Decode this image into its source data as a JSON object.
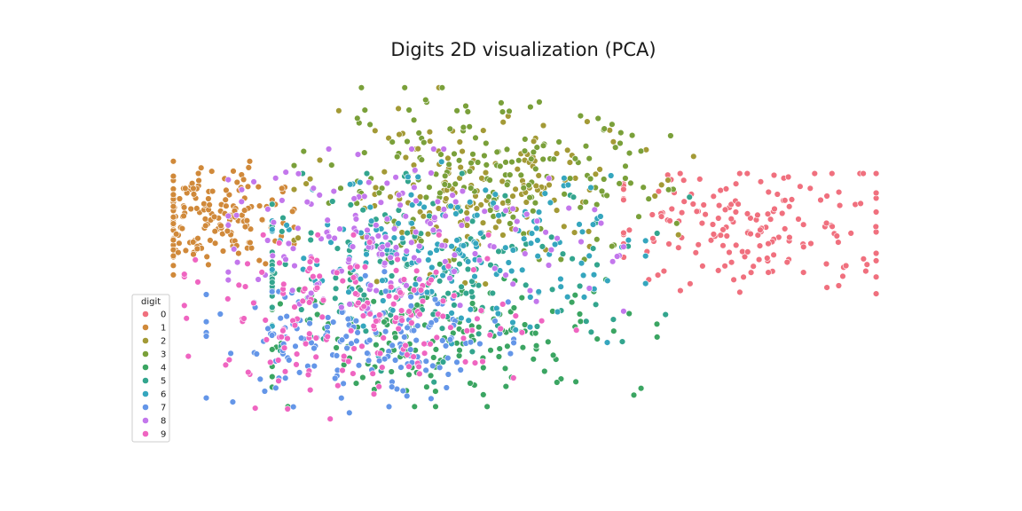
{
  "chart_data": {
    "type": "scatter",
    "title": "Digits 2D visualization (PCA)",
    "xlabel": "",
    "ylabel": "",
    "xlim": [
      -32,
      34
    ],
    "ylim": [
      -30,
      28
    ],
    "grid": false,
    "legend": {
      "title": "digit",
      "placement": "lower-left",
      "labels": [
        "0",
        "1",
        "2",
        "3",
        "4",
        "5",
        "6",
        "7",
        "8",
        "9"
      ]
    },
    "palette": [
      "#f0707e",
      "#d0893a",
      "#a39a36",
      "#7aa03a",
      "#3ba562",
      "#33a58e",
      "#35a6be",
      "#6496e8",
      "#c377ec",
      "#ef65c1"
    ],
    "series": [
      {
        "name": "0",
        "centroid": [
          22,
          3
        ],
        "spread": [
          7,
          5
        ],
        "count": 178,
        "range": [
          [
            10,
            33
          ],
          [
            -12,
            12
          ]
        ]
      },
      {
        "name": "1",
        "centroid": [
          -28,
          5
        ],
        "spread": [
          3.5,
          4
        ],
        "count": 182,
        "range": [
          [
            -31,
            -20
          ],
          [
            -8,
            14
          ]
        ]
      },
      {
        "name": "2",
        "centroid": [
          -4,
          9
        ],
        "spread": [
          7,
          6
        ],
        "count": 177,
        "range": [
          [
            -20,
            18
          ],
          [
            -6,
            26
          ]
        ]
      },
      {
        "name": "3",
        "centroid": [
          -2,
          11
        ],
        "spread": [
          8,
          6
        ],
        "count": 183,
        "range": [
          [
            -20,
            18
          ],
          [
            -2,
            26
          ]
        ]
      },
      {
        "name": "4",
        "centroid": [
          -6,
          -14
        ],
        "spread": [
          9,
          5
        ],
        "count": 181,
        "range": [
          [
            -22,
            14
          ],
          [
            -26,
            0
          ]
        ]
      },
      {
        "name": "5",
        "centroid": [
          -8,
          -4
        ],
        "spread": [
          10,
          7
        ],
        "count": 182,
        "range": [
          [
            -22,
            16
          ],
          [
            -22,
            12
          ]
        ]
      },
      {
        "name": "6",
        "centroid": [
          -6,
          -1
        ],
        "spread": [
          8,
          6
        ],
        "count": 181,
        "range": [
          [
            -22,
            12
          ],
          [
            -18,
            15
          ]
        ]
      },
      {
        "name": "7",
        "centroid": [
          -14,
          -16
        ],
        "spread": [
          7,
          5
        ],
        "count": 179,
        "range": [
          [
            -28,
            0
          ],
          [
            -27,
            -4
          ]
        ]
      },
      {
        "name": "8",
        "centroid": [
          -10,
          2
        ],
        "spread": [
          9,
          6
        ],
        "count": 174,
        "range": [
          [
            -26,
            10
          ],
          [
            -20,
            16
          ]
        ]
      },
      {
        "name": "9",
        "centroid": [
          -14,
          -12
        ],
        "spread": [
          8,
          6
        ],
        "count": 180,
        "range": [
          [
            -30,
            6
          ],
          [
            -28,
            2
          ]
        ]
      }
    ]
  }
}
